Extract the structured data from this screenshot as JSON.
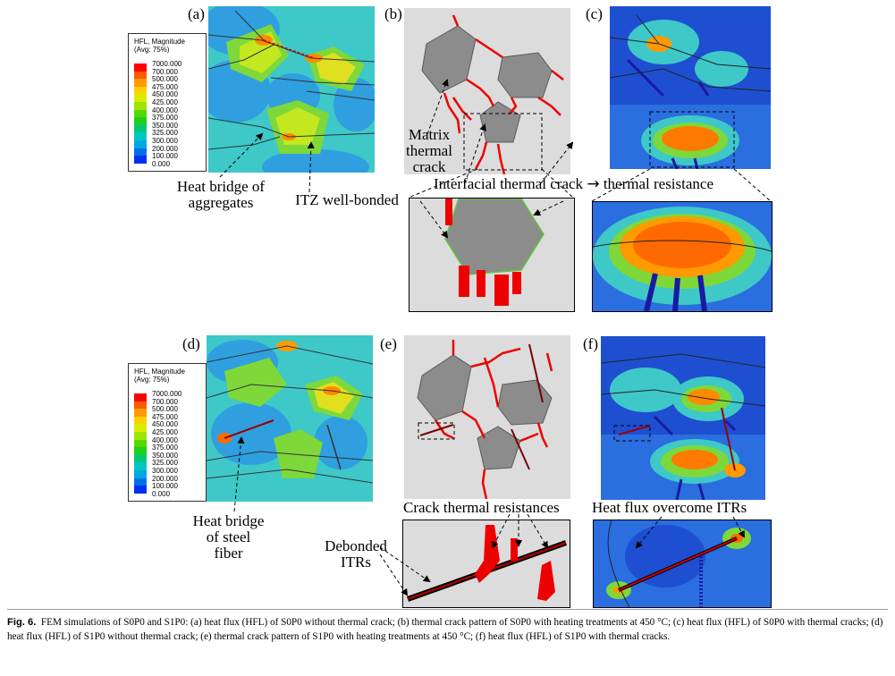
{
  "panel_labels": {
    "a": "(a)",
    "b": "(b)",
    "c": "(c)",
    "d": "(d)",
    "e": "(e)",
    "f": "(f)"
  },
  "legend": {
    "title": "HFL, Magnitude",
    "subtitle": "(Avg: 75%)",
    "values": [
      "7000.000",
      "700.000",
      "500.000",
      "475.000",
      "450.000",
      "425.000",
      "400.000",
      "375.000",
      "350.000",
      "325.000",
      "300.000",
      "200.000",
      "100.000",
      "0.000"
    ],
    "colors": [
      "#ff0000",
      "#ff5a00",
      "#ff9a00",
      "#ffd000",
      "#d8ee00",
      "#9fe400",
      "#55d800",
      "#1ed01e",
      "#00c878",
      "#00c8c0",
      "#00a8e0",
      "#0070e8",
      "#0030f0",
      "#0000c8"
    ]
  },
  "annotations": {
    "heat_bridge_aggregates": "Heat bridge of\naggregates",
    "itz_well_bonded": "ITZ well-bonded",
    "matrix_thermal_crack": "Matrix\nthermal\ncrack",
    "interfacial_crack": "Interfacial thermal crack",
    "arrow_symbol": "→",
    "thermal_resistance": "thermal resistance",
    "heat_bridge_fiber": "Heat bridge\nof steel\nfiber",
    "crack_thermal_resistances": "Crack thermal resistances",
    "debonded_itrs": "Debonded\nITRs",
    "heat_flux_overcome": "Heat flux overcome ITRs"
  },
  "caption": {
    "fig_label": "Fig. 6.",
    "text": "FEM simulations of S0P0 and S1P0: (a) heat flux (HFL) of S0P0 without thermal crack; (b) thermal crack pattern of S0P0 with heating treatments at 450 °C; (c) heat flux (HFL) of S0P0 with thermal cracks; (d) heat flux (HFL) of S1P0 without thermal crack; (e) thermal crack pattern of S1P0 with heating treatments at 450 °C; (f) heat flux (HFL) of S1P0 with thermal cracks."
  }
}
